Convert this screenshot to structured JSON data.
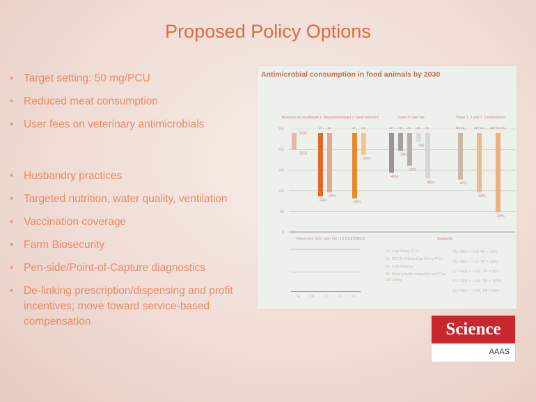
{
  "slide": {
    "title": "Proposed Policy Options",
    "bullets": [
      "Target setting: 50 mg/PCU",
      "Reduced meat consumption",
      "User fees on veterinary antimicrobials",
      "",
      "Husbandry practices",
      "Targeted nutrition, water quality, ventilation",
      "Vaccination coverage",
      "Farm Biosecurity",
      "Pen-side/Point-of-Capture diagnostics",
      "De-linking prescription/dispensing and profit incentives; move toward service-based compensation"
    ]
  },
  "logo": {
    "name": "Science",
    "publisher": "AAAS"
  },
  "colors": {
    "title": "#e0693e",
    "bullet": "#e88a68",
    "science_red": "#c8272e"
  },
  "chart_data": {
    "type": "bar",
    "title": "Antimicrobial consumption in food animals by 2030",
    "groups": [
      "Business as usual",
      "Target 1: Regulations",
      "Target 2: Meat reduction",
      "Target 3: User fee",
      "Target 1, 2 and 3: Combinations"
    ],
    "categories": [
      "BAU",
      "1A",
      "1B",
      "2A",
      "2B",
      "3A",
      "3B",
      "3C",
      "3D",
      "3E",
      "1B+3C",
      "2B+1B",
      "2B+1B+3C"
    ],
    "reductions_pct": [
      null,
      -64,
      -60,
      -66,
      -22,
      -40,
      -18,
      -33,
      -9,
      -46,
      -47,
      -60,
      -80
    ],
    "labels": [
      "2013",
      "-64%",
      "-60%",
      "-66%",
      "-22%",
      "-40%",
      "-18%",
      "-33%",
      "-9%",
      "-46%",
      "-47%",
      "-60%",
      "-80%"
    ],
    "bau_labels": [
      "2030",
      "2013"
    ],
    "yticks": [
      "250",
      "200",
      "150",
      "100",
      "50",
      "0"
    ],
    "ylim": [
      0,
      250
    ],
    "lower": {
      "revenue_title": "Revenues from user fee (10 US$ Billion)",
      "revenue_categories": [
        "1A",
        "1B",
        "1C",
        "1D",
        "1E"
      ],
      "solutions_title": "Solutions",
      "solutions_left": [
        "1A: Cap 50mg PCU",
        "1B: OECD+China Cap 50mg PCU",
        "2A: Cap 40g/day",
        "2B: Meat growth mitigation and Cap 165 g/day"
      ],
      "solutions_right": [
        "3A: PED = -1.0, TR = 50%",
        "3B: PED = -1.0, TR = 50%",
        "3C: PED = -1.05, TR = 50%",
        "3D: PED = -1.05, TR = 100%",
        "3E: PED = -1.05, TR = 10%"
      ]
    }
  }
}
